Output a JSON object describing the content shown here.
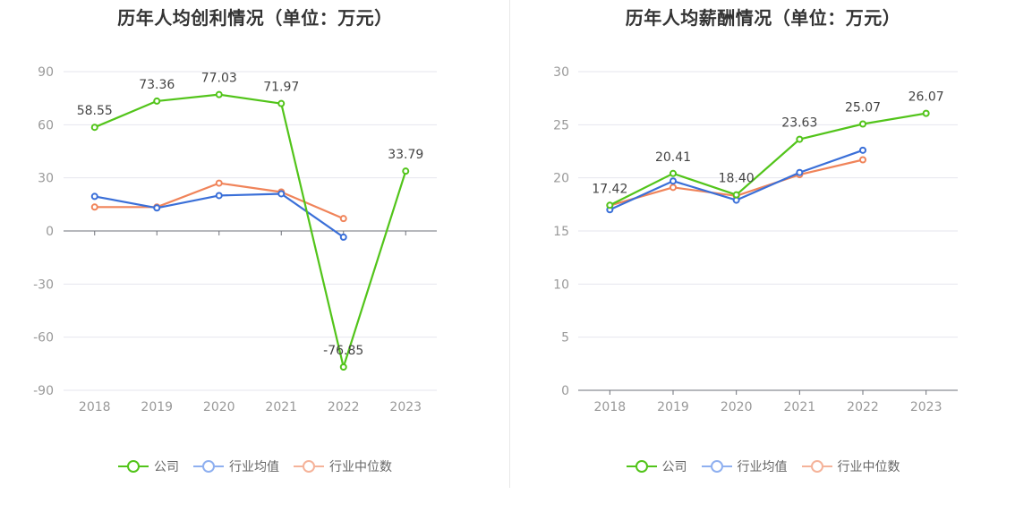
{
  "legend": {
    "company": "公司",
    "industry_avg": "行业均值",
    "industry_median": "行业中位数"
  },
  "colors": {
    "company": "#52c41a",
    "industry_avg": "#3a6fd8",
    "industry_median": "#f0845a",
    "industry_avg_legend": "#8fb0f0",
    "industry_median_legend": "#f5b39a"
  },
  "chart_data": [
    {
      "type": "line",
      "title": "历年人均创利情况（单位：万元）",
      "categories": [
        "2018",
        "2019",
        "2020",
        "2021",
        "2022",
        "2023"
      ],
      "ylim": [
        -90,
        90
      ],
      "yticks": [
        90,
        60,
        30,
        0,
        -30,
        -60,
        -90
      ],
      "series": [
        {
          "name": "公司",
          "key": "company",
          "values": [
            58.55,
            73.36,
            77.03,
            71.97,
            -76.85,
            33.79
          ],
          "labels": [
            "58.55",
            "73.36",
            "77.03",
            "71.97",
            "-76.85",
            "33.79"
          ]
        },
        {
          "name": "行业均值",
          "key": "industry_avg",
          "values": [
            19.5,
            13.0,
            20.0,
            21.0,
            -3.5,
            null
          ]
        },
        {
          "name": "行业中位数",
          "key": "industry_median",
          "values": [
            13.5,
            13.5,
            27.0,
            22.0,
            7.0,
            null
          ]
        }
      ],
      "grid": true
    },
    {
      "type": "line",
      "title": "历年人均薪酬情况（单位：万元）",
      "categories": [
        "2018",
        "2019",
        "2020",
        "2021",
        "2022",
        "2023"
      ],
      "ylim": [
        0,
        30
      ],
      "yticks": [
        30,
        25,
        20,
        15,
        10,
        5,
        0
      ],
      "series": [
        {
          "name": "公司",
          "key": "company",
          "values": [
            17.42,
            20.41,
            18.4,
            23.63,
            25.07,
            26.07
          ],
          "labels": [
            "17.42",
            "20.41",
            "18.40",
            "23.63",
            "25.07",
            "26.07"
          ]
        },
        {
          "name": "行业均值",
          "key": "industry_avg",
          "values": [
            17.0,
            19.7,
            17.9,
            20.5,
            22.6,
            null
          ]
        },
        {
          "name": "行业中位数",
          "key": "industry_median",
          "values": [
            17.4,
            19.1,
            18.3,
            20.3,
            21.7,
            null
          ]
        }
      ],
      "grid": true
    }
  ]
}
